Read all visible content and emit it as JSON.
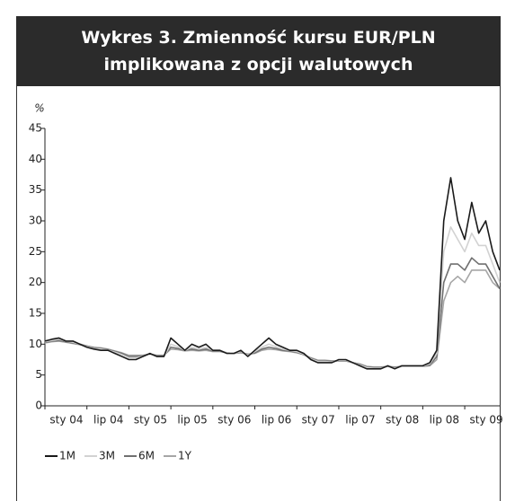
{
  "chart_data": {
    "type": "line",
    "title": "Wykres 3. Zmienność kursu EUR/PLN implikowana z opcji walutowych",
    "ylabel": "%",
    "ylim": [
      0,
      45
    ],
    "yticks": [
      0,
      5,
      10,
      15,
      20,
      25,
      30,
      35,
      40,
      45
    ],
    "categories": [
      "sty 04",
      null,
      null,
      null,
      null,
      null,
      "lip 04",
      null,
      null,
      null,
      null,
      null,
      "sty 05",
      null,
      null,
      null,
      null,
      null,
      "lip 05",
      null,
      null,
      null,
      null,
      null,
      "sty 06",
      null,
      null,
      null,
      null,
      null,
      "lip 06",
      null,
      null,
      null,
      null,
      null,
      "sty 07",
      null,
      null,
      null,
      null,
      null,
      "lip 07",
      null,
      null,
      null,
      null,
      null,
      "sty 08",
      null,
      null,
      null,
      null,
      null,
      "lip 08",
      null,
      null,
      null,
      null,
      null,
      "sty 09",
      null,
      null,
      null,
      null,
      null
    ],
    "series": [
      {
        "name": "1M",
        "color": "#1a1a1a",
        "values": [
          10.5,
          10.8,
          11,
          10.5,
          10.5,
          10,
          9.5,
          9.2,
          9,
          9,
          8.5,
          8,
          7.5,
          7.5,
          8,
          8.5,
          8,
          8,
          11,
          10,
          9,
          10,
          9.5,
          10,
          9,
          9,
          8.5,
          8.5,
          9,
          8,
          9,
          10,
          11,
          10,
          9.5,
          9,
          9,
          8.5,
          7.5,
          7,
          7,
          7,
          7.5,
          7.5,
          7,
          6.5,
          6,
          6,
          6,
          6.5,
          6,
          6.5,
          6.5,
          6.5,
          6.5,
          7,
          9,
          30,
          37,
          30,
          27,
          33,
          28,
          30,
          25,
          22
        ]
      },
      {
        "name": "3M",
        "color": "#d2d2d2",
        "values": [
          10.4,
          10.6,
          10.8,
          10.5,
          10.3,
          10,
          9.6,
          9.3,
          9.2,
          9,
          8.7,
          8.3,
          7.8,
          7.8,
          8,
          8.4,
          8,
          8,
          10,
          9.6,
          9,
          9.5,
          9.2,
          9.5,
          9,
          9,
          8.6,
          8.5,
          8.8,
          8.2,
          8.8,
          9.5,
          10,
          9.6,
          9.2,
          9,
          8.8,
          8.4,
          7.6,
          7.2,
          7.2,
          7.1,
          7.4,
          7.4,
          7,
          6.6,
          6.2,
          6.1,
          6.1,
          6.4,
          6.1,
          6.4,
          6.4,
          6.4,
          6.4,
          6.8,
          8.5,
          25,
          29,
          27,
          25,
          28,
          26,
          26,
          23,
          20
        ]
      },
      {
        "name": "6M",
        "color": "#707070",
        "values": [
          10.3,
          10.5,
          10.6,
          10.4,
          10.2,
          10,
          9.7,
          9.4,
          9.3,
          9.1,
          8.8,
          8.5,
          8,
          8,
          8.1,
          8.4,
          8.1,
          8.1,
          9.5,
          9.3,
          9,
          9.2,
          9,
          9.2,
          8.9,
          8.9,
          8.6,
          8.5,
          8.7,
          8.3,
          8.6,
          9.2,
          9.5,
          9.3,
          9,
          8.9,
          8.7,
          8.3,
          7.7,
          7.3,
          7.3,
          7.2,
          7.3,
          7.3,
          7,
          6.7,
          6.3,
          6.2,
          6.2,
          6.4,
          6.2,
          6.4,
          6.4,
          6.4,
          6.4,
          6.6,
          8,
          20,
          23,
          23,
          22,
          24,
          23,
          23,
          21,
          19
        ]
      },
      {
        "name": "1Y",
        "color": "#a6a6a6",
        "values": [
          10.2,
          10.4,
          10.5,
          10.3,
          10.1,
          9.9,
          9.7,
          9.5,
          9.4,
          9.2,
          8.9,
          8.6,
          8.2,
          8.2,
          8.2,
          8.4,
          8.2,
          8.2,
          9.2,
          9.1,
          8.9,
          9,
          8.9,
          9,
          8.8,
          8.8,
          8.6,
          8.5,
          8.6,
          8.4,
          8.5,
          9,
          9.2,
          9.1,
          8.9,
          8.8,
          8.6,
          8.3,
          7.8,
          7.4,
          7.4,
          7.3,
          7.3,
          7.3,
          7,
          6.8,
          6.4,
          6.3,
          6.3,
          6.4,
          6.3,
          6.4,
          6.4,
          6.4,
          6.4,
          6.5,
          7.5,
          17,
          20,
          21,
          20,
          22,
          22,
          22,
          20,
          19
        ]
      }
    ]
  }
}
